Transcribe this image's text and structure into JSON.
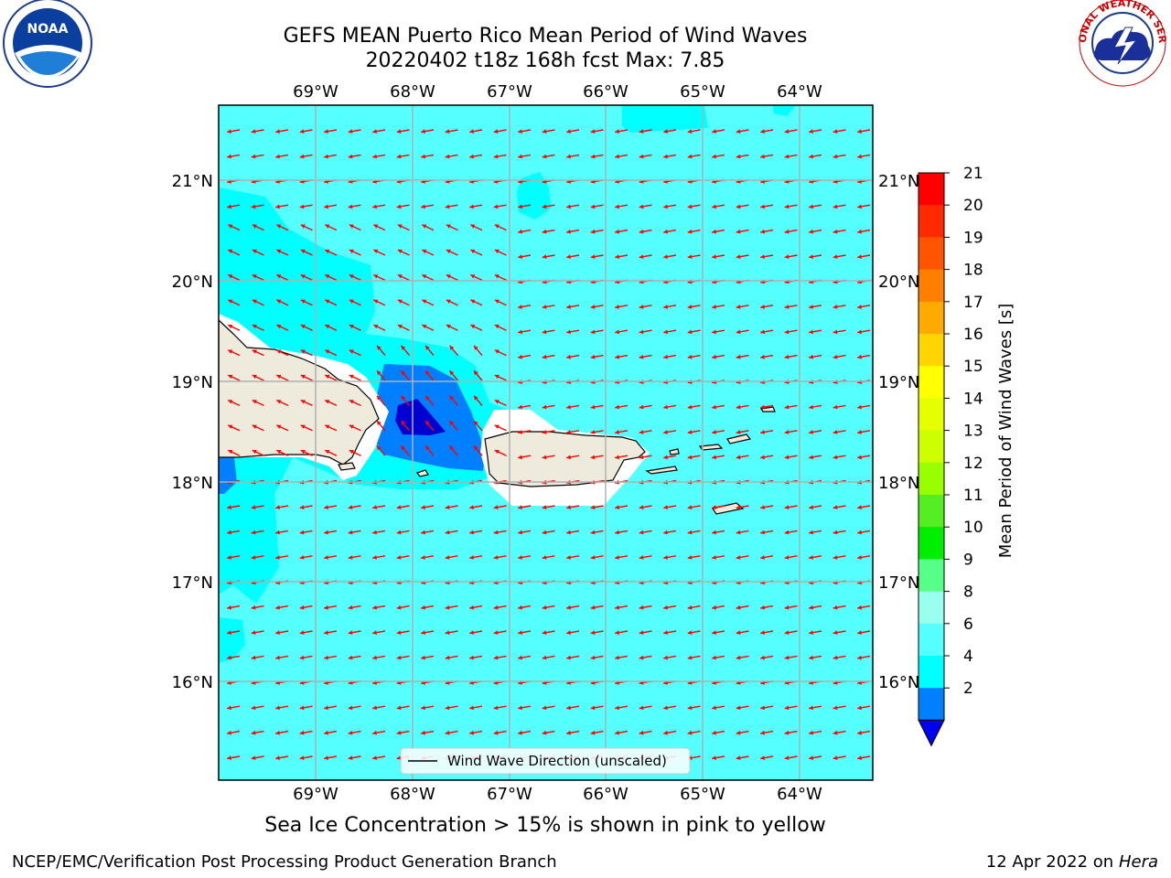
{
  "header": {
    "title_line1": "GEFS MEAN Puerto Rico Mean Period of Wind Waves",
    "title_line2": "20220402 t18z 168h fcst   Max: 7.85"
  },
  "logos": {
    "left": {
      "name": "noaa-logo",
      "text": "NOAA"
    },
    "right": {
      "name": "nws-logo",
      "text": "NATIONAL WEATHER SERVICE"
    }
  },
  "map": {
    "lon_ticks": [
      "69°W",
      "68°W",
      "67°W",
      "66°W",
      "65°W",
      "64°W"
    ],
    "lat_ticks": [
      "21°N",
      "20°N",
      "19°N",
      "18°N",
      "17°N",
      "16°N"
    ],
    "legend_label": "Wind Wave Direction (unscaled)",
    "colors": {
      "ocean": "#55ffff",
      "cyan4_6": "#00ffff",
      "blue2_4": "#0080ff",
      "deep_blue": "#0000d0",
      "land": "#efebdc",
      "arrow": "#ff0000",
      "grid": "#b0b0b0"
    }
  },
  "colorbar": {
    "label": "Mean Period of Wind Waves [s]",
    "tick_labels": [
      "21",
      "20",
      "19",
      "18",
      "17",
      "16",
      "15",
      "14",
      "13",
      "12",
      "11",
      "10",
      "9",
      "8",
      "6",
      "4",
      "2"
    ],
    "colors": [
      "#ff0000",
      "#ff2a00",
      "#ff5500",
      "#ff8000",
      "#ffaa00",
      "#ffd400",
      "#ffff00",
      "#e6ff00",
      "#ccff00",
      "#99ff00",
      "#55ee22",
      "#00ee00",
      "#55ff88",
      "#99ffee",
      "#55ffff",
      "#00ffff",
      "#0080ff"
    ],
    "extend_color": "#0000ee"
  },
  "footer": {
    "caption": "Sea Ice Concentration > 15% is shown in pink to yellow",
    "left": "NCEP/EMC/Verification Post Processing Product Generation Branch",
    "date": "12 Apr 2022 on",
    "host": "Hera"
  }
}
